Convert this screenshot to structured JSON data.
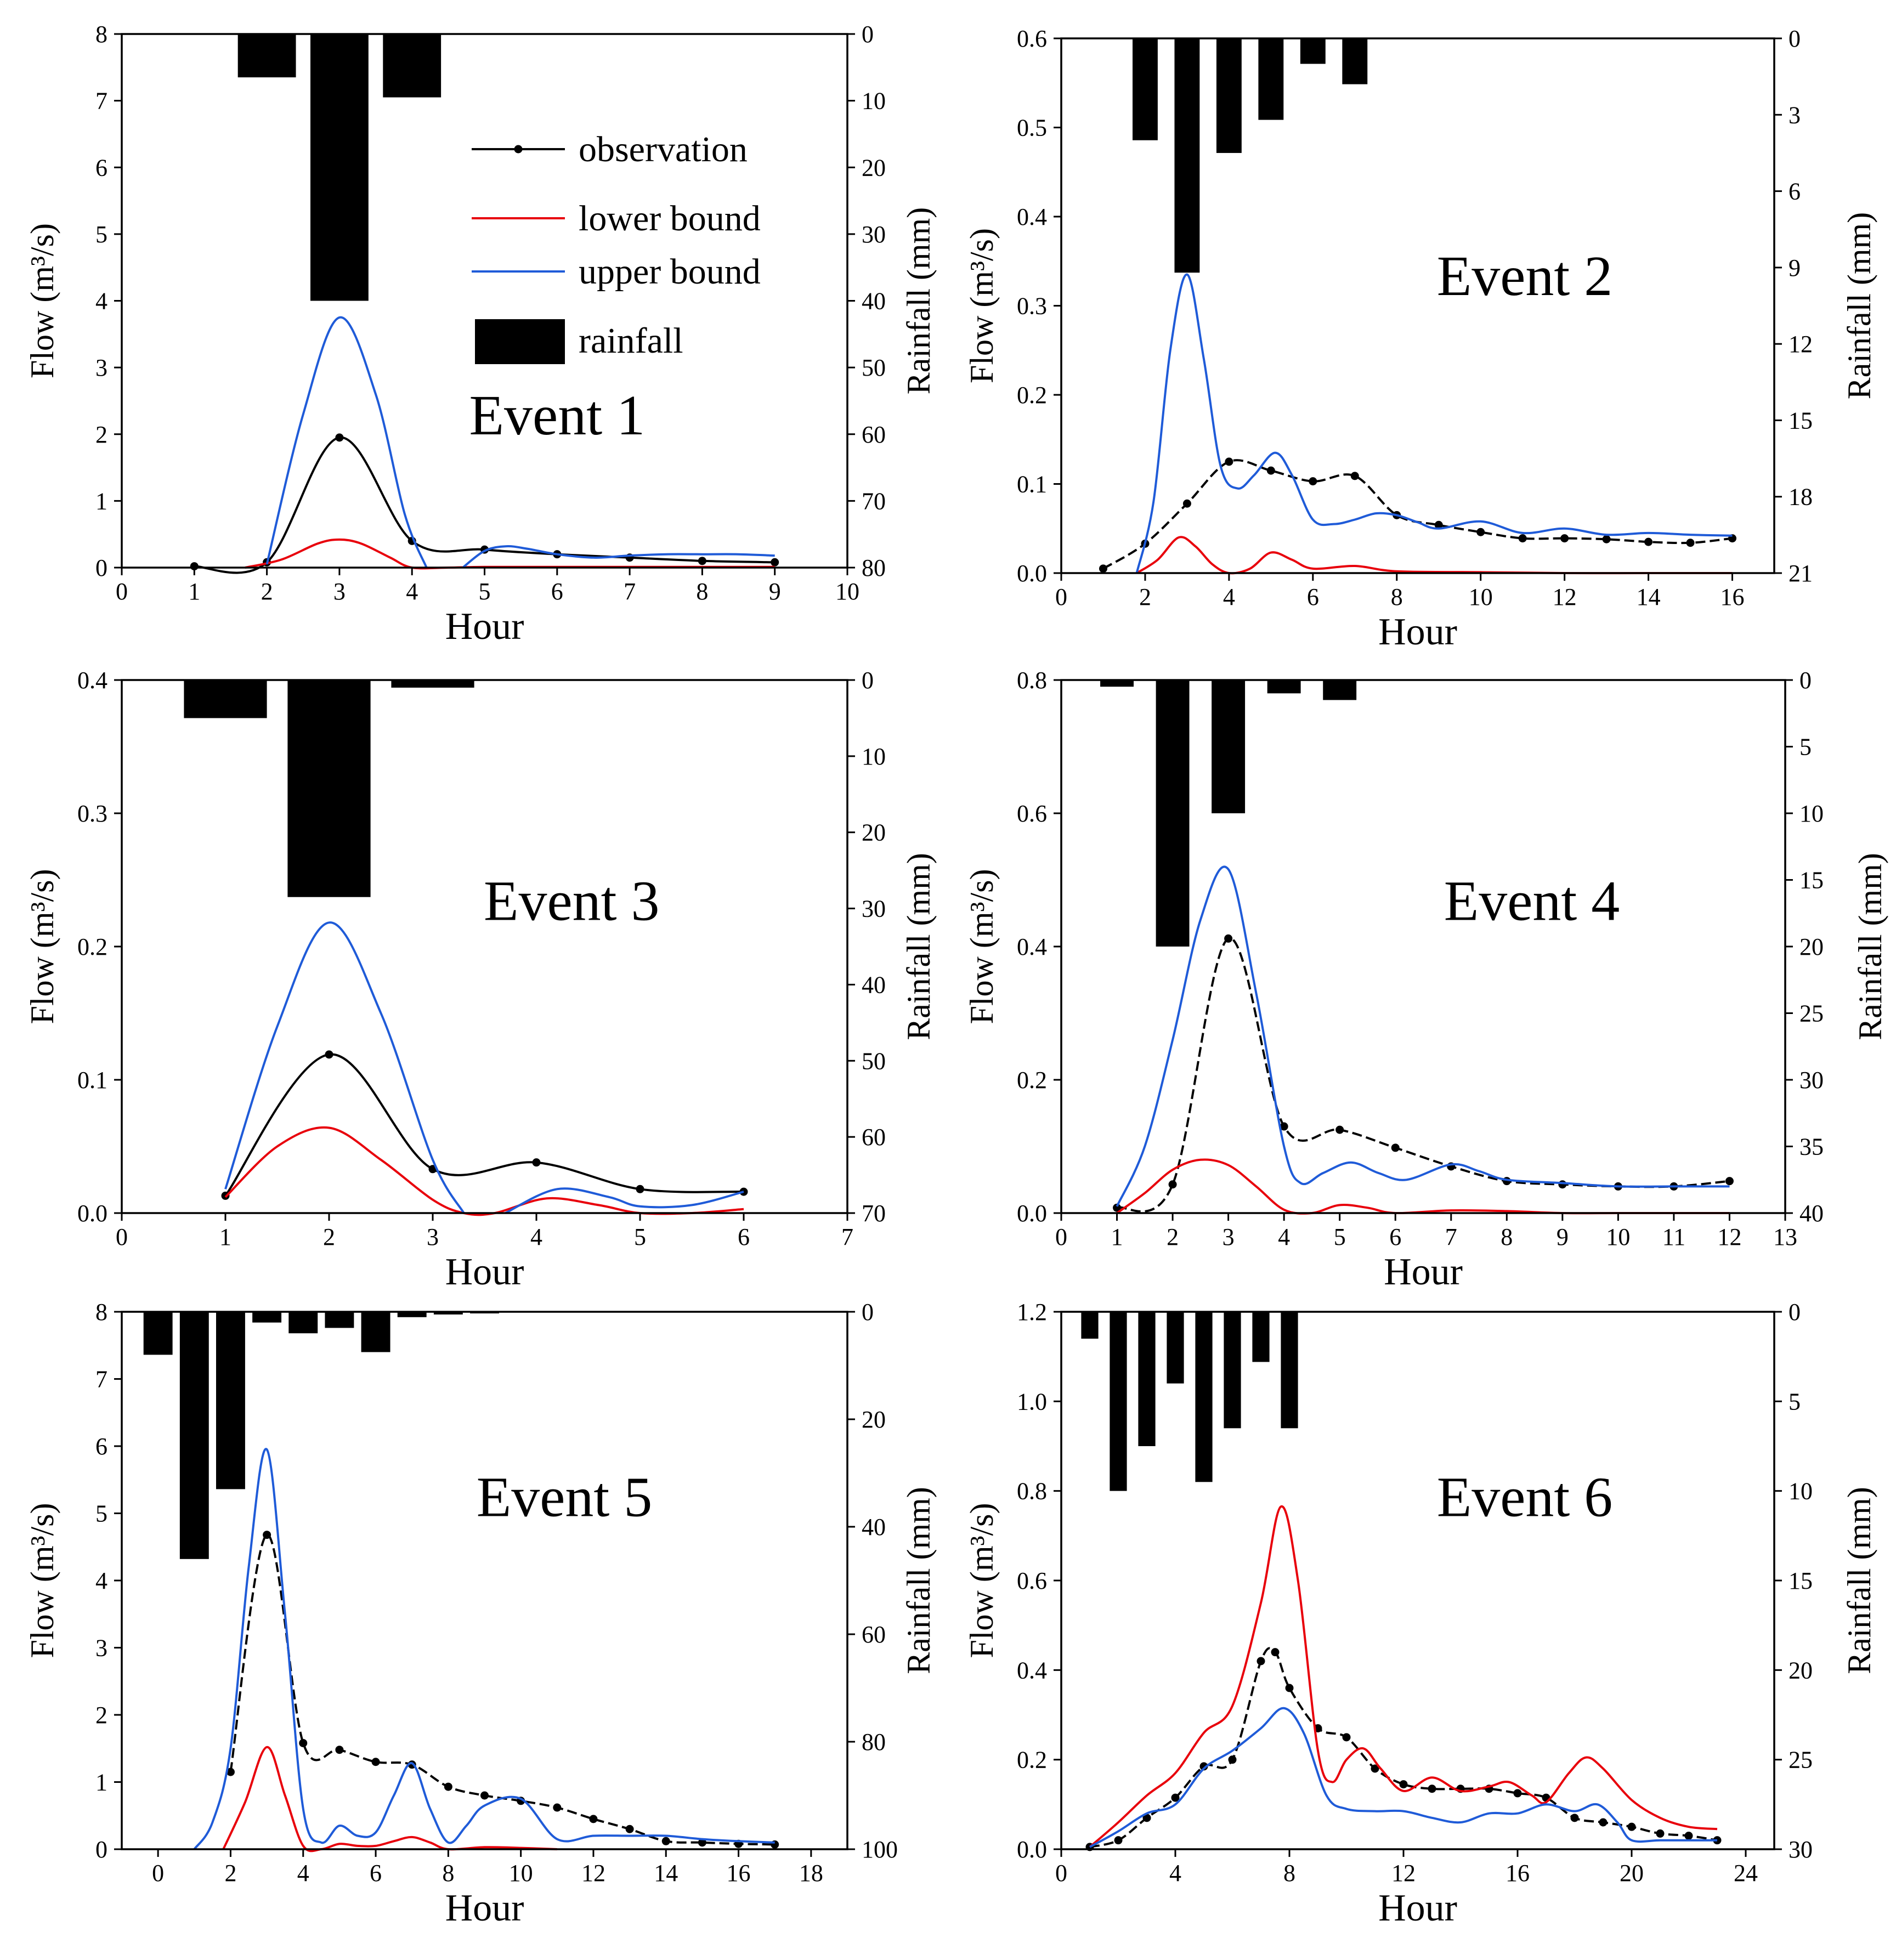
{
  "legend": {
    "observation": "observation",
    "lower": "lower bound",
    "upper": "upper bound",
    "rainfall": "rainfall"
  },
  "colors": {
    "observation": "#000000",
    "lower": "#e8000b",
    "upper": "#1f5bd8",
    "rainfall": "#000000"
  },
  "chart_data": [
    {
      "type": "line",
      "annotation": "Event 1",
      "xlabel": "Hour",
      "ylabel": "Flow (m³/s)",
      "y2label": "Rainfall (mm)",
      "xlim": [
        0,
        10
      ],
      "xticks": [
        0,
        1,
        2,
        3,
        4,
        5,
        6,
        7,
        8,
        9,
        10
      ],
      "ylim": [
        0,
        8
      ],
      "yticks": [
        0,
        1,
        2,
        3,
        4,
        5,
        6,
        7,
        8
      ],
      "y2lim": [
        0,
        80
      ],
      "y2ticks": [
        0,
        10,
        20,
        30,
        40,
        50,
        60,
        70,
        80
      ],
      "series": [
        {
          "name": "observation",
          "x": [
            1,
            2,
            3,
            4,
            5,
            6,
            7,
            8,
            9
          ],
          "y": [
            0.02,
            0.08,
            1.95,
            0.4,
            0.27,
            0.2,
            0.15,
            0.1,
            0.08
          ]
        },
        {
          "name": "lower bound",
          "x": [
            1.7,
            2.2,
            2.7,
            3.0,
            3.3,
            3.7,
            4.0,
            4.5,
            5,
            6,
            7,
            8,
            9
          ],
          "y": [
            0,
            0.12,
            0.36,
            0.42,
            0.36,
            0.15,
            0,
            0,
            0.01,
            0.01,
            0.01,
            0.01,
            0.01
          ]
        },
        {
          "name": "upper bound",
          "x": [
            2.0,
            2.5,
            3.0,
            3.5,
            3.9,
            4.2
          ],
          "y": [
            0.05,
            2.3,
            3.75,
            2.6,
            0.8,
            0
          ]
        },
        {
          "name": "upper bound",
          "x": [
            4.7,
            5.0,
            5.3,
            5.6,
            6,
            6.5,
            7,
            7.5,
            8,
            8.5,
            9
          ],
          "y": [
            0,
            0.25,
            0.32,
            0.28,
            0.2,
            0.15,
            0.18,
            0.2,
            0.2,
            0.2,
            0.18
          ]
        }
      ],
      "rainfall": {
        "x": [
          2,
          3,
          4
        ],
        "width": 0.8,
        "values": [
          6.5,
          40,
          9.5
        ]
      }
    },
    {
      "type": "line",
      "annotation": "Event 2",
      "xlabel": "Hour",
      "ylabel": "Flow (m³/s)",
      "y2label": "Rainfall (mm)",
      "xlim": [
        0,
        17
      ],
      "xticks": [
        0,
        2,
        4,
        6,
        8,
        10,
        12,
        14,
        16
      ],
      "ylim": [
        0,
        0.6
      ],
      "yticks": [
        "0.0",
        "0.1",
        "0.2",
        "0.3",
        "0.4",
        "0.5",
        "0.6"
      ],
      "y2lim": [
        0,
        21
      ],
      "y2ticks": [
        0,
        3,
        6,
        9,
        12,
        15,
        18,
        21
      ],
      "series": [
        {
          "name": "observation",
          "x": [
            1,
            2,
            3,
            4,
            5,
            6,
            7,
            8,
            9,
            10,
            11,
            12,
            13,
            14,
            15,
            16
          ],
          "y": [
            0.005,
            0.033,
            0.078,
            0.125,
            0.115,
            0.103,
            0.109,
            0.065,
            0.054,
            0.046,
            0.039,
            0.039,
            0.038,
            0.035,
            0.034,
            0.039
          ]
        },
        {
          "name": "lower bound",
          "x": [
            1.8,
            2.3,
            2.8,
            3.2,
            3.6,
            4.0,
            4.5,
            5.0,
            5.5,
            6,
            7,
            8,
            10,
            12,
            14,
            16
          ],
          "y": [
            0,
            0.015,
            0.04,
            0.03,
            0.01,
            0,
            0.005,
            0.023,
            0.015,
            0.005,
            0.008,
            0.002,
            0.001,
            0,
            0,
            0
          ]
        },
        {
          "name": "upper bound",
          "x": [
            1.8,
            2.2,
            2.6,
            3.0,
            3.4,
            3.8,
            4.2,
            4.6,
            5.1,
            5.5,
            6,
            6.5,
            7,
            7.5,
            8,
            8.5,
            9,
            10,
            11,
            12,
            13,
            14,
            15,
            16
          ],
          "y": [
            0,
            0.08,
            0.25,
            0.335,
            0.24,
            0.12,
            0.095,
            0.11,
            0.135,
            0.11,
            0.06,
            0.055,
            0.06,
            0.067,
            0.065,
            0.057,
            0.05,
            0.058,
            0.045,
            0.05,
            0.043,
            0.045,
            0.043,
            0.042
          ]
        }
      ],
      "rainfall": {
        "x": [
          2,
          3,
          4,
          5,
          6,
          7
        ],
        "width": 0.6,
        "values": [
          4,
          9.2,
          4.5,
          3.2,
          1,
          1.8
        ]
      }
    },
    {
      "type": "line",
      "annotation": "Event 3",
      "xlabel": "Hour",
      "ylabel": "Flow (m³/s)",
      "y2label": "Rainfall (mm)",
      "xlim": [
        0,
        7
      ],
      "xticks": [
        0,
        1,
        2,
        3,
        4,
        5,
        6,
        7
      ],
      "ylim": [
        0,
        0.4
      ],
      "yticks": [
        "0.0",
        "0.1",
        "0.2",
        "0.3",
        "0.4"
      ],
      "y2lim": [
        0,
        70
      ],
      "y2ticks": [
        0,
        10,
        20,
        30,
        40,
        50,
        60,
        70
      ],
      "series": [
        {
          "name": "observation",
          "x": [
            1,
            2,
            3,
            4,
            5,
            6
          ],
          "y": [
            0.013,
            0.119,
            0.033,
            0.038,
            0.018,
            0.016
          ]
        },
        {
          "name": "lower bound",
          "x": [
            1,
            1.5,
            2,
            2.5,
            3,
            3.3,
            3.6,
            4.1,
            4.6,
            5,
            5.5,
            6
          ],
          "y": [
            0.012,
            0.05,
            0.064,
            0.04,
            0.01,
            0,
            0,
            0.011,
            0.006,
            0,
            0,
            0.003
          ]
        },
        {
          "name": "upper bound",
          "x": [
            1,
            1.5,
            2,
            2.5,
            3,
            3.3
          ],
          "y": [
            0.018,
            0.14,
            0.218,
            0.15,
            0.04,
            0
          ]
        },
        {
          "name": "upper bound",
          "x": [
            3.7,
            4.2,
            4.7,
            5,
            5.5,
            6
          ],
          "y": [
            0,
            0.018,
            0.012,
            0.005,
            0.006,
            0.016
          ]
        }
      ],
      "rainfall": {
        "x": [
          1,
          2,
          3
        ],
        "width": 0.8,
        "values": [
          5,
          28.5,
          1
        ]
      }
    },
    {
      "type": "line",
      "annotation": "Event 4",
      "xlabel": "Hour",
      "ylabel": "Flow (m³/s)",
      "y2label": "Rainfall (mm)",
      "xlim": [
        0,
        13
      ],
      "xticks": [
        0,
        1,
        2,
        3,
        4,
        5,
        6,
        7,
        8,
        9,
        10,
        11,
        12,
        13
      ],
      "ylim": [
        0,
        0.8
      ],
      "yticks": [
        "0.0",
        "0.2",
        "0.4",
        "0.6",
        "0.8"
      ],
      "y2lim": [
        0,
        40
      ],
      "y2ticks": [
        0,
        5,
        10,
        15,
        20,
        25,
        30,
        35,
        40
      ],
      "series": [
        {
          "name": "observation",
          "x": [
            1,
            2,
            3,
            4,
            5,
            6,
            7,
            8,
            9,
            10,
            11,
            12
          ],
          "y": [
            0.008,
            0.043,
            0.412,
            0.13,
            0.125,
            0.098,
            0.07,
            0.048,
            0.043,
            0.04,
            0.04,
            0.048
          ]
        },
        {
          "name": "lower bound",
          "x": [
            1,
            1.5,
            2,
            2.5,
            3,
            3.5,
            4,
            4.5,
            5,
            5.5,
            6,
            7,
            8,
            9,
            10,
            11,
            12
          ],
          "y": [
            0,
            0.03,
            0.065,
            0.08,
            0.072,
            0.04,
            0.005,
            0,
            0.012,
            0.008,
            0,
            0.004,
            0.003,
            0,
            0,
            0,
            0
          ]
        },
        {
          "name": "upper bound",
          "x": [
            1,
            1.5,
            2,
            2.5,
            3,
            3.5,
            4,
            4.3,
            4.7,
            5.2,
            5.7,
            6.2,
            7,
            7.5,
            8,
            9,
            10,
            11,
            12
          ],
          "y": [
            0.01,
            0.1,
            0.26,
            0.44,
            0.516,
            0.33,
            0.1,
            0.045,
            0.06,
            0.076,
            0.06,
            0.05,
            0.073,
            0.063,
            0.05,
            0.045,
            0.04,
            0.04,
            0.04
          ]
        }
      ],
      "rainfall": {
        "x": [
          1,
          2,
          3,
          4,
          5
        ],
        "width": 0.6,
        "values": [
          0.5,
          20,
          10,
          1,
          1.5
        ]
      }
    },
    {
      "type": "line",
      "annotation": "Event 5",
      "xlabel": "Hour",
      "ylabel": "Flow (m³/s)",
      "y2label": "Rainfall (mm)",
      "xlim": [
        -1,
        19
      ],
      "xticks": [
        0,
        2,
        4,
        6,
        8,
        10,
        12,
        14,
        16,
        18
      ],
      "ylim": [
        0,
        8
      ],
      "yticks": [
        0,
        1,
        2,
        3,
        4,
        5,
        6,
        7,
        8
      ],
      "y2lim": [
        0,
        100
      ],
      "y2ticks": [
        0,
        20,
        40,
        60,
        80,
        100
      ],
      "series": [
        {
          "name": "observation",
          "x": [
            2,
            3,
            4,
            5,
            6,
            7,
            8,
            9,
            10,
            11,
            12,
            13,
            14,
            15,
            16,
            17
          ],
          "y": [
            1.15,
            4.68,
            1.58,
            1.48,
            1.3,
            1.26,
            0.93,
            0.8,
            0.72,
            0.62,
            0.45,
            0.3,
            0.12,
            0.1,
            0.08,
            0.07
          ]
        },
        {
          "name": "lower bound",
          "x": [
            1.8,
            2.4,
            3,
            3.5,
            4,
            4.5,
            5,
            5.5,
            6,
            6.5,
            7,
            7.5,
            8,
            9,
            10,
            11
          ],
          "y": [
            0,
            0.7,
            1.52,
            0.8,
            0.05,
            0,
            0.08,
            0.05,
            0.05,
            0.12,
            0.18,
            0.1,
            0,
            0.03,
            0.02,
            0
          ]
        },
        {
          "name": "upper bound",
          "x": [
            1.0,
            1.5,
            2,
            2.5,
            3,
            3.5,
            4,
            4.5,
            5,
            5.5,
            6,
            6.5,
            7,
            7.5,
            8,
            8.5,
            9,
            10,
            11,
            12,
            13,
            14,
            15,
            16,
            17
          ],
          "y": [
            0,
            0.4,
            1.5,
            4.2,
            5.95,
            3.5,
            0.6,
            0.1,
            0.35,
            0.2,
            0.25,
            0.8,
            1.28,
            0.6,
            0.1,
            0.35,
            0.65,
            0.75,
            0.15,
            0.2,
            0.2,
            0.2,
            0.15,
            0.12,
            0.1
          ]
        }
      ],
      "rainfall": {
        "x": [
          0,
          1,
          2,
          3,
          4,
          5,
          6,
          7,
          8,
          9
        ],
        "width": 0.8,
        "values": [
          8,
          46,
          33,
          2,
          4,
          3,
          7.5,
          1,
          0.5,
          0.3
        ]
      }
    },
    {
      "type": "line",
      "annotation": "Event 6",
      "xlabel": "Hour",
      "ylabel": "Flow (m³/s)",
      "y2label": "Rainfall (mm)",
      "xlim": [
        0,
        25
      ],
      "xticks": [
        0,
        4,
        8,
        12,
        16,
        20,
        24
      ],
      "ylim": [
        0,
        1.2
      ],
      "yticks": [
        "0.0",
        "0.2",
        "0.4",
        "0.6",
        "0.8",
        "1.0",
        "1.2"
      ],
      "y2lim": [
        0,
        30
      ],
      "y2ticks": [
        0,
        5,
        10,
        15,
        20,
        25,
        30
      ],
      "series": [
        {
          "name": "observation",
          "x": [
            1,
            2,
            3,
            4,
            5,
            6,
            7,
            7.5,
            8,
            9,
            10,
            11,
            12,
            13,
            14,
            15,
            16,
            17,
            18,
            19,
            20,
            21,
            22,
            23
          ],
          "y": [
            0.005,
            0.02,
            0.07,
            0.115,
            0.185,
            0.2,
            0.42,
            0.44,
            0.36,
            0.27,
            0.25,
            0.18,
            0.145,
            0.135,
            0.135,
            0.135,
            0.125,
            0.115,
            0.07,
            0.06,
            0.05,
            0.035,
            0.03,
            0.02
          ]
        },
        {
          "name": "lower bound",
          "x": [
            1,
            2,
            3,
            4,
            5,
            6,
            7,
            7.7,
            8.3,
            9,
            9.5,
            10,
            10.6,
            11.2,
            12,
            13,
            14,
            15,
            15.7,
            16.5,
            17,
            17.8,
            18.4,
            19,
            20,
            21,
            22,
            23
          ],
          "y": [
            0.005,
            0.06,
            0.12,
            0.17,
            0.26,
            0.32,
            0.55,
            0.765,
            0.6,
            0.22,
            0.15,
            0.2,
            0.225,
            0.18,
            0.13,
            0.16,
            0.13,
            0.14,
            0.15,
            0.12,
            0.105,
            0.17,
            0.205,
            0.18,
            0.11,
            0.07,
            0.05,
            0.045
          ]
        },
        {
          "name": "upper bound",
          "x": [
            1,
            2,
            3,
            4,
            5,
            6,
            7,
            7.8,
            8.5,
            9.3,
            10,
            11,
            12,
            13,
            14,
            15,
            16,
            17,
            18,
            18.8,
            19.5,
            20,
            21,
            22,
            23
          ],
          "y": [
            0.005,
            0.04,
            0.08,
            0.1,
            0.18,
            0.22,
            0.27,
            0.315,
            0.26,
            0.12,
            0.09,
            0.085,
            0.085,
            0.07,
            0.06,
            0.08,
            0.08,
            0.1,
            0.085,
            0.1,
            0.06,
            0.02,
            0.02,
            0.02,
            0.02
          ]
        }
      ],
      "rainfall": {
        "x": [
          1,
          2,
          3,
          4,
          5,
          6,
          7,
          8
        ],
        "width": 0.6,
        "values": [
          1.5,
          10,
          7.5,
          4,
          9.5,
          6.5,
          2.8,
          6.5
        ]
      }
    }
  ]
}
